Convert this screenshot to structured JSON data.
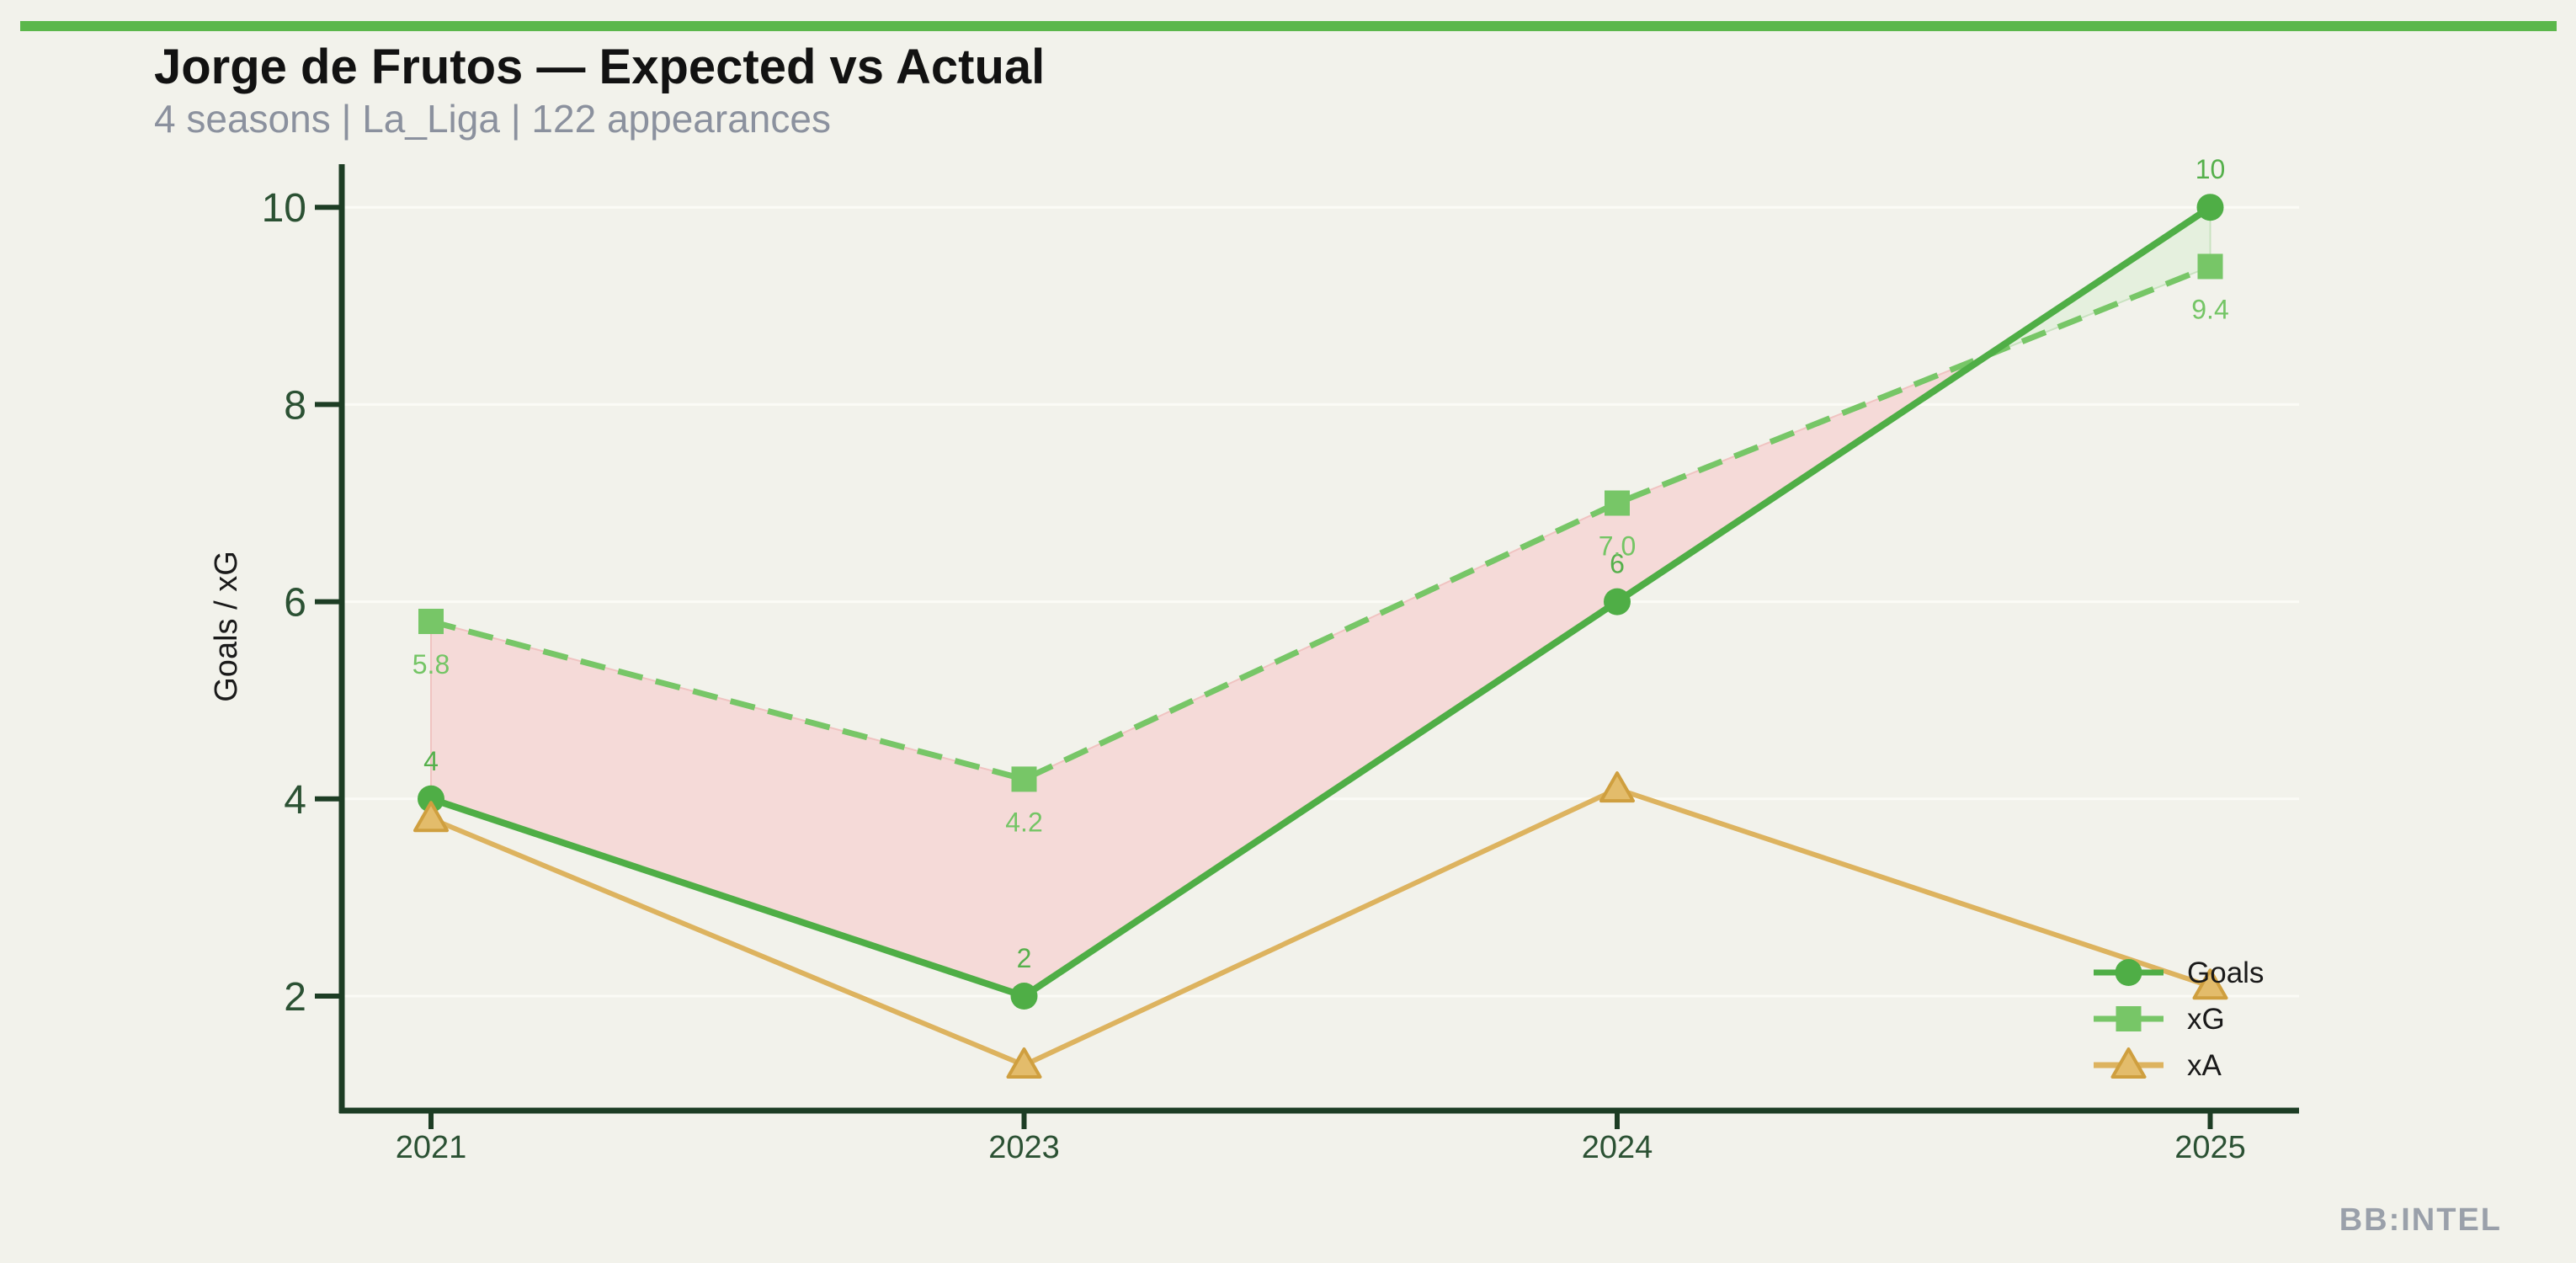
{
  "page": {
    "title": "Jorge de Frutos — Expected vs Actual",
    "subtitle": "4 seasons | La_Liga | 122 appearances",
    "watermark": "BB:INTEL",
    "background_color": "#f2f2eb",
    "accent_bar_color": "#5bb74b"
  },
  "chart_data": {
    "type": "line",
    "title": "Jorge de Frutos — Expected vs Actual",
    "subtitle": "4 seasons | La_Liga | 122 appearances",
    "categories": [
      "2021",
      "2023",
      "2024",
      "2025"
    ],
    "series": [
      {
        "name": "Goals",
        "values": [
          4,
          2,
          6,
          10
        ],
        "point_labels": [
          "4",
          "2",
          "6",
          "10"
        ],
        "label_position": "above",
        "color": "#4fae46",
        "label_color": "#55b04b",
        "marker": "circle",
        "line_style": "solid"
      },
      {
        "name": "xG",
        "values": [
          5.8,
          4.2,
          7.0,
          9.4
        ],
        "point_labels": [
          "5.8",
          "4.2",
          "7.0",
          "9.4"
        ],
        "label_position": "below",
        "color": "#77c667",
        "label_color": "#74c565",
        "marker": "square",
        "line_style": "dashed"
      },
      {
        "name": "xA",
        "values": [
          3.8,
          1.3,
          4.1,
          2.1
        ],
        "point_labels": [],
        "label_position": "none",
        "color": "#ddb35f",
        "marker": "triangle",
        "marker_fill": "#e3bc6b",
        "marker_stroke": "#cf9f3f",
        "line_style": "solid"
      }
    ],
    "xlabel": "",
    "ylabel": "Goals / xG",
    "yticks": [
      2,
      4,
      6,
      8,
      10
    ],
    "ylim": [
      0.8,
      10.5
    ],
    "grid": "horizontal, white gridlines on ticks",
    "legend": [
      "Goals",
      "xG",
      "xA"
    ],
    "legend_position": "lower right",
    "fills": {
      "xg_over_goals_color": "#f5dad8",
      "xg_over_goals_edge": "#f0c3c1",
      "goals_over_xg_color": "#e5f0de",
      "goals_over_xg_edge": "#c9e2c0",
      "description": "shaded band between Goals and xG, pink where xG exceeds Goals, green where Goals exceed xG, crossover between 2024 and 2025 at about 8.5"
    },
    "axis_color": "#1d3d24",
    "tick_label_color": "#2b5133",
    "gridline_color": "#fbfbf6"
  }
}
